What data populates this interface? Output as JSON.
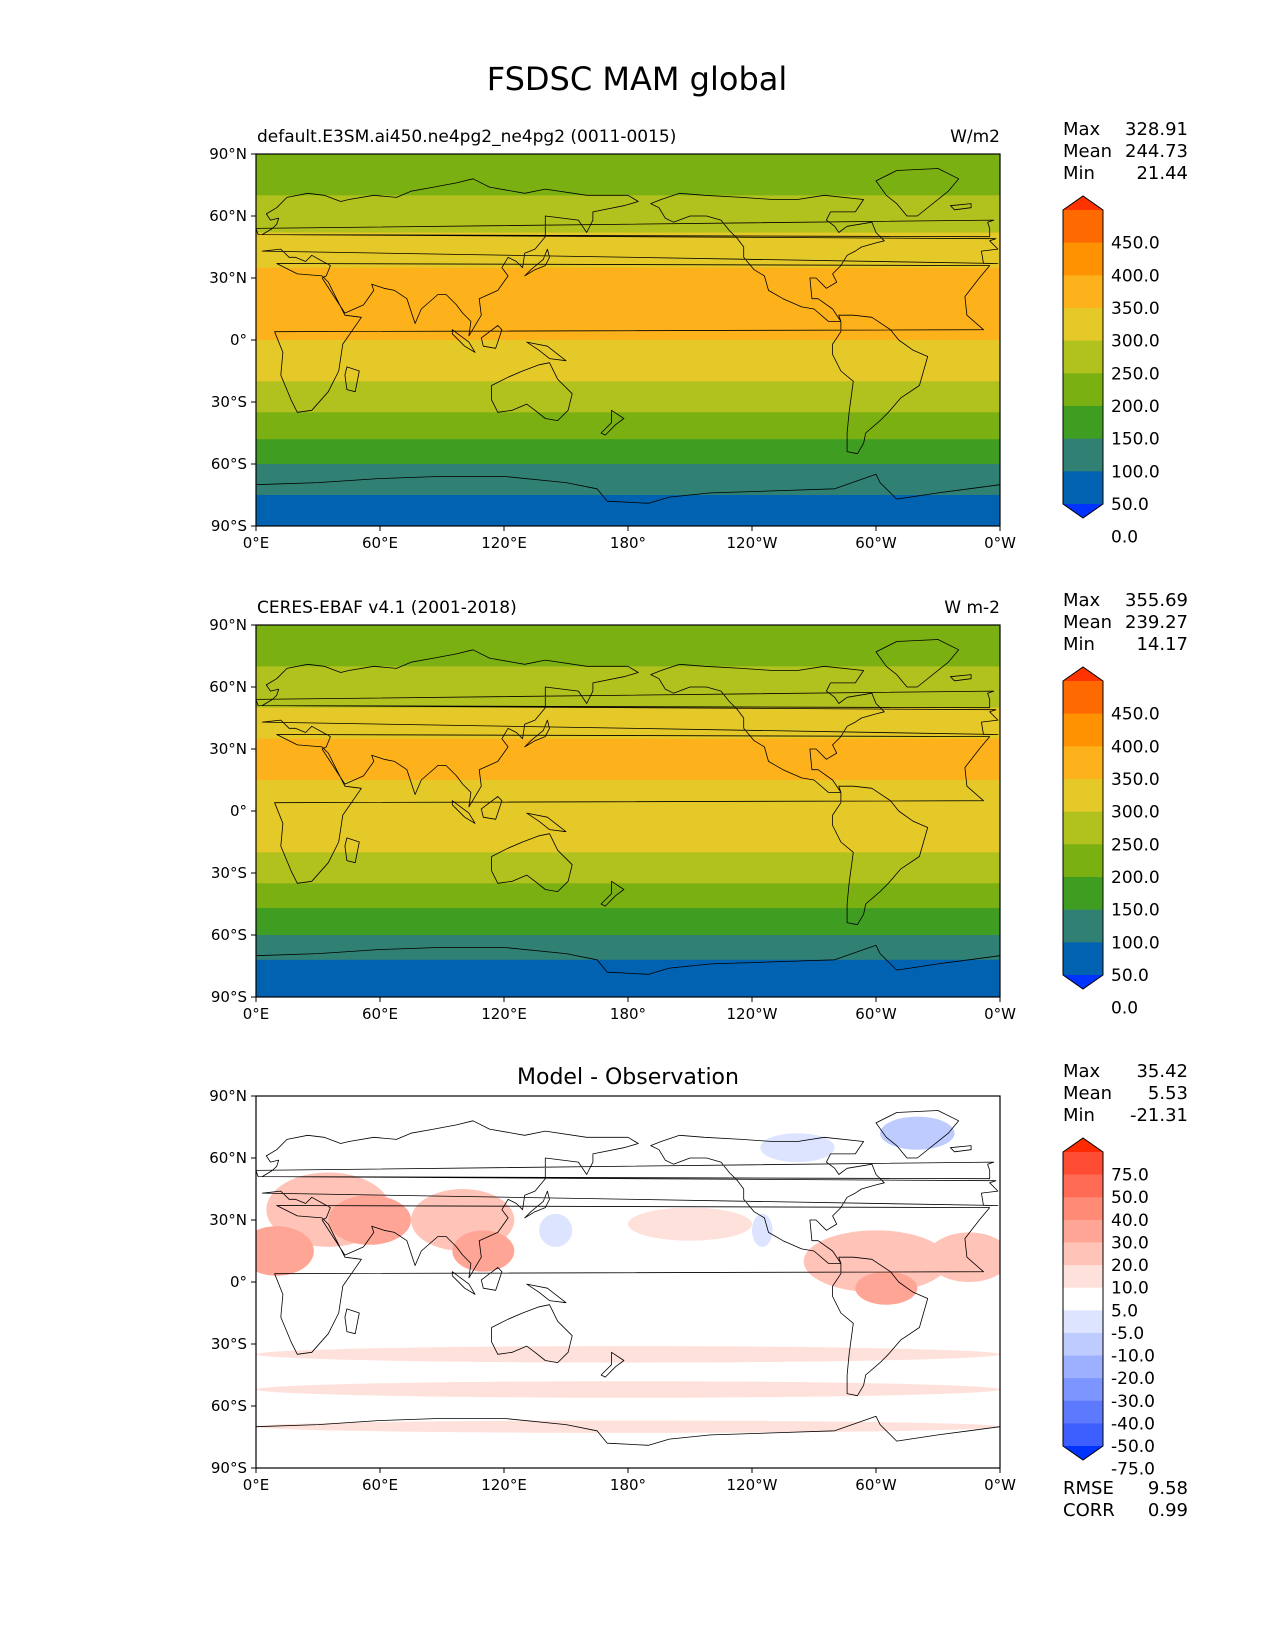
{
  "figure_title": "FSDSC MAM global",
  "lon_labels": [
    "0°E",
    "60°E",
    "120°E",
    "180°",
    "120°W",
    "60°W",
    "0°W"
  ],
  "lat_labels": [
    "90°N",
    "60°N",
    "30°N",
    "0°",
    "30°S",
    "60°S",
    "90°S"
  ],
  "panels": [
    {
      "id": "model",
      "title_left": "default.E3SM.ai450.ne4pg2_ne4pg2 (0011-0015)",
      "title_center": "",
      "units": "W/m2",
      "stats": [
        {
          "label": "Max",
          "value": "328.91"
        },
        {
          "label": "Mean",
          "value": "244.73"
        },
        {
          "label": "Min",
          "value": "21.44"
        }
      ],
      "colorbar": {
        "ticks": [
          "450.0",
          "400.0",
          "350.0",
          "300.0",
          "250.0",
          "200.0",
          "150.0",
          "100.0",
          "50.0",
          "0.0"
        ],
        "colors": [
          "#ff3300",
          "#ff6a00",
          "#ff9200",
          "#fdb21c",
          "#e5c929",
          "#b1c11e",
          "#7ab012",
          "#3f9e22",
          "#308173",
          "#0062b1",
          "#0033ff"
        ]
      },
      "zonal_bands": [
        {
          "lat_top": 90,
          "lat_bottom": 70,
          "color": "#7ab012"
        },
        {
          "lat_top": 70,
          "lat_bottom": 52,
          "color": "#b1c11e"
        },
        {
          "lat_top": 52,
          "lat_bottom": 35,
          "color": "#e5c929"
        },
        {
          "lat_top": 35,
          "lat_bottom": 0,
          "color": "#fdb21c"
        },
        {
          "lat_top": 0,
          "lat_bottom": -20,
          "color": "#e5c929"
        },
        {
          "lat_top": -20,
          "lat_bottom": -35,
          "color": "#b1c11e"
        },
        {
          "lat_top": -35,
          "lat_bottom": -48,
          "color": "#7ab012"
        },
        {
          "lat_top": -48,
          "lat_bottom": -60,
          "color": "#3f9e22"
        },
        {
          "lat_top": -60,
          "lat_bottom": -75,
          "color": "#308173"
        },
        {
          "lat_top": -75,
          "lat_bottom": -90,
          "color": "#0062b1"
        }
      ]
    },
    {
      "id": "obs",
      "title_left": "CERES-EBAF v4.1 (2001-2018)",
      "title_center": "",
      "units": "W m-2",
      "stats": [
        {
          "label": "Max",
          "value": "355.69"
        },
        {
          "label": "Mean",
          "value": "239.27"
        },
        {
          "label": "Min",
          "value": "14.17"
        }
      ],
      "colorbar": {
        "ticks": [
          "450.0",
          "400.0",
          "350.0",
          "300.0",
          "250.0",
          "200.0",
          "150.0",
          "100.0",
          "50.0",
          "0.0"
        ],
        "colors": [
          "#ff3300",
          "#ff6a00",
          "#ff9200",
          "#fdb21c",
          "#e5c929",
          "#b1c11e",
          "#7ab012",
          "#3f9e22",
          "#308173",
          "#0062b1",
          "#0033ff"
        ]
      },
      "zonal_bands": [
        {
          "lat_top": 90,
          "lat_bottom": 70,
          "color": "#7ab012"
        },
        {
          "lat_top": 70,
          "lat_bottom": 50,
          "color": "#b1c11e"
        },
        {
          "lat_top": 50,
          "lat_bottom": 35,
          "color": "#e5c929"
        },
        {
          "lat_top": 35,
          "lat_bottom": 15,
          "color": "#fdb21c"
        },
        {
          "lat_top": 15,
          "lat_bottom": -20,
          "color": "#e5c929"
        },
        {
          "lat_top": -20,
          "lat_bottom": -35,
          "color": "#b1c11e"
        },
        {
          "lat_top": -35,
          "lat_bottom": -47,
          "color": "#7ab012"
        },
        {
          "lat_top": -47,
          "lat_bottom": -60,
          "color": "#3f9e22"
        },
        {
          "lat_top": -60,
          "lat_bottom": -72,
          "color": "#308173"
        },
        {
          "lat_top": -72,
          "lat_bottom": -90,
          "color": "#0062b1"
        }
      ]
    },
    {
      "id": "diff",
      "title_left": "",
      "title_center": "Model - Observation",
      "units": "",
      "stats": [
        {
          "label": "Max",
          "value": "35.42"
        },
        {
          "label": "Mean",
          "value": "5.53"
        },
        {
          "label": "Min",
          "value": "-21.31"
        }
      ],
      "extra_stats": [
        {
          "label": "RMSE",
          "value": "9.58"
        },
        {
          "label": "CORR",
          "value": "0.99"
        }
      ],
      "colorbar": {
        "ticks": [
          "75.0",
          "50.0",
          "40.0",
          "30.0",
          "20.0",
          "10.0",
          "5.0",
          "-5.0",
          "-10.0",
          "-20.0",
          "-30.0",
          "-40.0",
          "-50.0",
          "-75.0"
        ],
        "colors": [
          "#ff2a00",
          "#ff4d33",
          "#ff6b55",
          "#ff8a75",
          "#ffa595",
          "#ffc3b8",
          "#ffe1db",
          "#ffffff",
          "#dde4ff",
          "#bdcbff",
          "#9db0ff",
          "#7d95ff",
          "#5d7aff",
          "#3d5fff",
          "#0033ff"
        ]
      },
      "zonal_bands": [
        {
          "lat_top": 90,
          "lat_bottom": 70,
          "color": "#ffffff"
        },
        {
          "lat_top": 70,
          "lat_bottom": 10,
          "color": "#ffffff"
        },
        {
          "lat_top": 10,
          "lat_bottom": -90,
          "color": "#ffffff"
        }
      ],
      "anomaly_patches": [
        {
          "lon": 35,
          "lat": 35,
          "rlon": 30,
          "rlat": 18,
          "color": "#ffc3b8"
        },
        {
          "lon": 55,
          "lat": 30,
          "rlon": 20,
          "rlat": 12,
          "color": "#ffa595"
        },
        {
          "lon": 10,
          "lat": 15,
          "rlon": 18,
          "rlat": 12,
          "color": "#ffa595"
        },
        {
          "lon": 100,
          "lat": 30,
          "rlon": 25,
          "rlat": 15,
          "color": "#ffc3b8"
        },
        {
          "lon": 110,
          "lat": 15,
          "rlon": 15,
          "rlat": 10,
          "color": "#ffa595"
        },
        {
          "lon": 300,
          "lat": 10,
          "rlon": 35,
          "rlat": 15,
          "color": "#ffc3b8"
        },
        {
          "lon": 305,
          "lat": -3,
          "rlon": 15,
          "rlat": 8,
          "color": "#ffa595"
        },
        {
          "lon": 345,
          "lat": 12,
          "rlon": 20,
          "rlat": 12,
          "color": "#ffc3b8"
        },
        {
          "lon": 210,
          "lat": 28,
          "rlon": 30,
          "rlat": 8,
          "color": "#ffe1db"
        },
        {
          "lon": 320,
          "lat": 72,
          "rlon": 18,
          "rlat": 8,
          "color": "#bdcbff"
        },
        {
          "lon": 262,
          "lat": 65,
          "rlon": 18,
          "rlat": 7,
          "color": "#dde4ff"
        },
        {
          "lon": 245,
          "lat": 25,
          "rlon": 5,
          "rlat": 8,
          "color": "#dde4ff"
        },
        {
          "lon": 145,
          "lat": 25,
          "rlon": 8,
          "rlat": 8,
          "color": "#dde4ff"
        },
        {
          "lon": 180,
          "lat": -35,
          "rlon": 180,
          "rlat": 4,
          "color": "#ffe1db"
        },
        {
          "lon": 180,
          "lat": -52,
          "rlon": 180,
          "rlat": 4,
          "color": "#ffe1db"
        },
        {
          "lon": 180,
          "lat": -70,
          "rlon": 180,
          "rlat": 3,
          "color": "#ffe1db"
        }
      ]
    }
  ]
}
